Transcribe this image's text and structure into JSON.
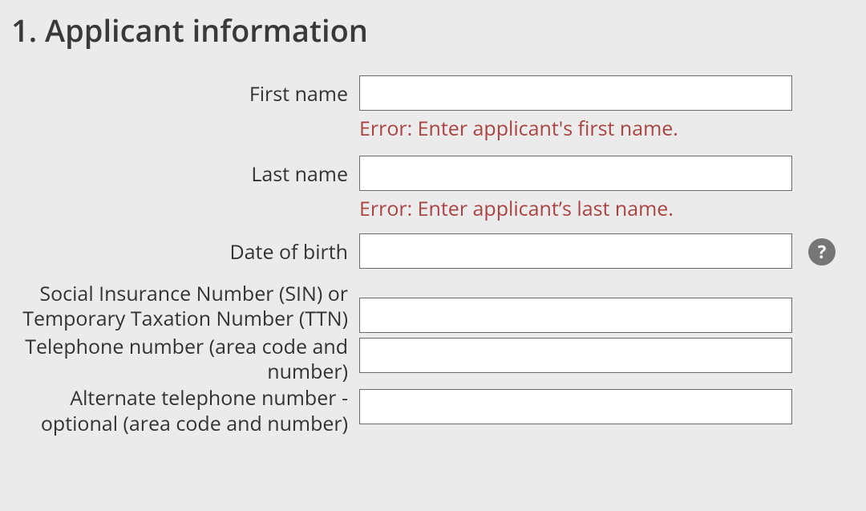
{
  "section": {
    "title": "1. Applicant information"
  },
  "colors": {
    "background": "#ebebeb",
    "heading_text": "#393939",
    "label_text": "#333333",
    "error_text": "#a94442",
    "input_bg": "#ffffff",
    "input_border": "#6a6a6a",
    "help_bg": "#767676",
    "help_fg": "#ffffff"
  },
  "fields": {
    "first_name": {
      "label": "First name",
      "value": "",
      "error": "Error: Enter applicant's first name."
    },
    "last_name": {
      "label": "Last name",
      "value": "",
      "error": "Error: Enter applicant’s last name."
    },
    "dob": {
      "label": "Date of birth",
      "value": "",
      "help_glyph": "?"
    },
    "sin": {
      "label": "Social Insurance Number (SIN) or Temporary Taxation Number (TTN)",
      "value": ""
    },
    "telephone": {
      "label": "Telephone number (area code and number)",
      "value": ""
    },
    "alt_telephone": {
      "label": "Alternate telephone number - optional (area code and number)",
      "value": ""
    }
  }
}
